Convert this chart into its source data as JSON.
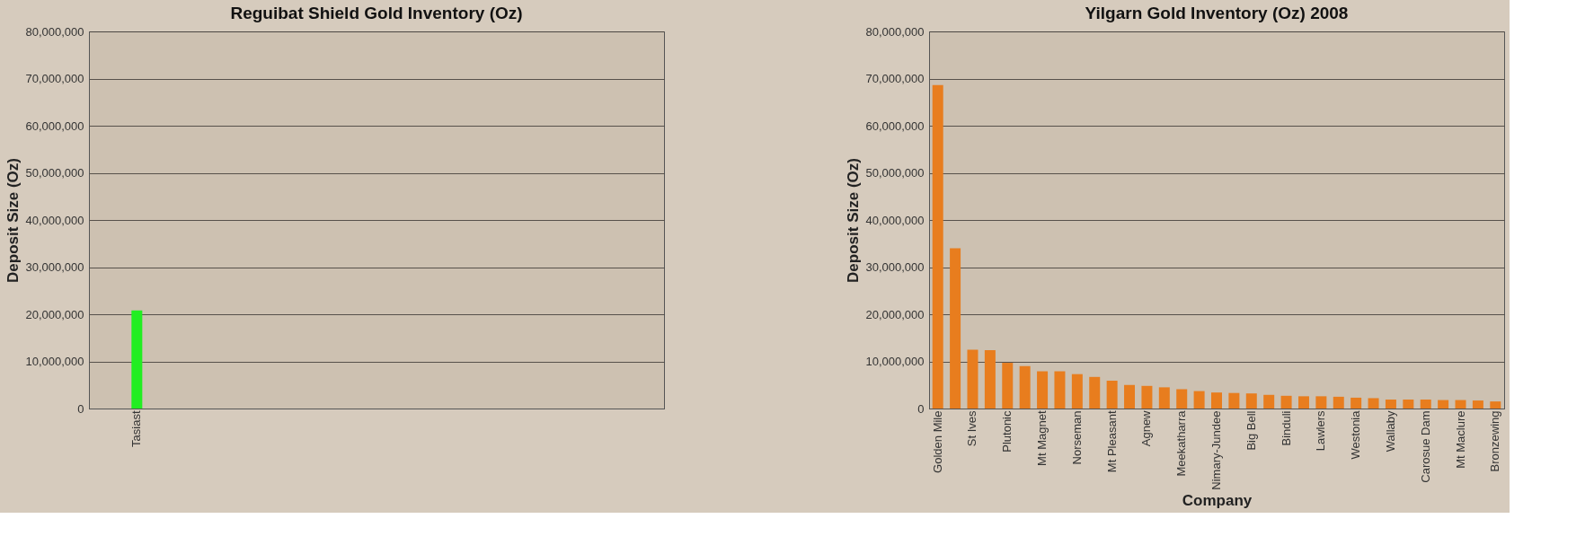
{
  "chart_data": [
    {
      "type": "bar",
      "title": "Reguibat Shield Gold Inventory (Oz)",
      "ylabel": "Deposit Size (Oz)",
      "categories": [
        "Tasiast",
        null,
        null,
        null,
        null,
        null
      ],
      "series": [
        {
          "color": "#22ee22",
          "values": [
            20800000,
            null,
            null,
            null,
            null,
            null
          ]
        }
      ],
      "ylim": [
        0,
        80000000
      ],
      "yticks": [
        {
          "value": 0,
          "label": "0"
        },
        {
          "value": 10000000,
          "label": "10,000,000"
        },
        {
          "value": 20000000,
          "label": "20,000,000"
        },
        {
          "value": 30000000,
          "label": "30,000,000"
        },
        {
          "value": 40000000,
          "label": "40,000,000"
        },
        {
          "value": 50000000,
          "label": "50,000,000"
        },
        {
          "value": 60000000,
          "label": "60,000,000"
        },
        {
          "value": 70000000,
          "label": "70,000,000"
        },
        {
          "value": 80000000,
          "label": "80,000,000"
        }
      ],
      "grid": "y",
      "legend": false
    },
    {
      "type": "bar",
      "title": "Yilgarn Gold Inventory (Oz) 2008",
      "ylabel": "Deposit Size (Oz)",
      "xlabel": "Company",
      "categories": [
        "Golden Mile",
        null,
        "St Ives",
        null,
        "Plutonic",
        null,
        "Mt Magnet",
        null,
        "Norseman",
        null,
        "Mt Pleasant",
        null,
        "Agnew",
        null,
        "Meekatharra",
        null,
        "Nimary-Jundee",
        null,
        "Big Bell",
        null,
        "Binduli",
        null,
        "Lawlers",
        null,
        "Westonia",
        null,
        "Wallaby",
        null,
        "Carosue Dam",
        null,
        "Mt Maclure",
        null,
        "Bronzewing"
      ],
      "series": [
        {
          "color": "#e87d1e",
          "values": [
            68600000,
            34000000,
            12500000,
            12400000,
            9700000,
            9000000,
            7900000,
            7900000,
            7300000,
            6700000,
            5900000,
            5000000,
            4800000,
            4500000,
            4100000,
            3700000,
            3400000,
            3300000,
            3200000,
            2900000,
            2700000,
            2600000,
            2600000,
            2500000,
            2300000,
            2200000,
            1900000,
            1900000,
            1900000,
            1800000,
            1800000,
            1700000,
            1500000
          ]
        }
      ],
      "ylim": [
        0,
        80000000
      ],
      "yticks": [
        {
          "value": 0,
          "label": "0"
        },
        {
          "value": 10000000,
          "label": "10,000,000"
        },
        {
          "value": 20000000,
          "label": "20,000,000"
        },
        {
          "value": 30000000,
          "label": "30,000,000"
        },
        {
          "value": 40000000,
          "label": "40,000,000"
        },
        {
          "value": 50000000,
          "label": "50,000,000"
        },
        {
          "value": 60000000,
          "label": "60,000,000"
        },
        {
          "value": 70000000,
          "label": "70,000,000"
        },
        {
          "value": 80000000,
          "label": "80,000,000"
        }
      ],
      "grid": "y",
      "legend": false
    }
  ]
}
